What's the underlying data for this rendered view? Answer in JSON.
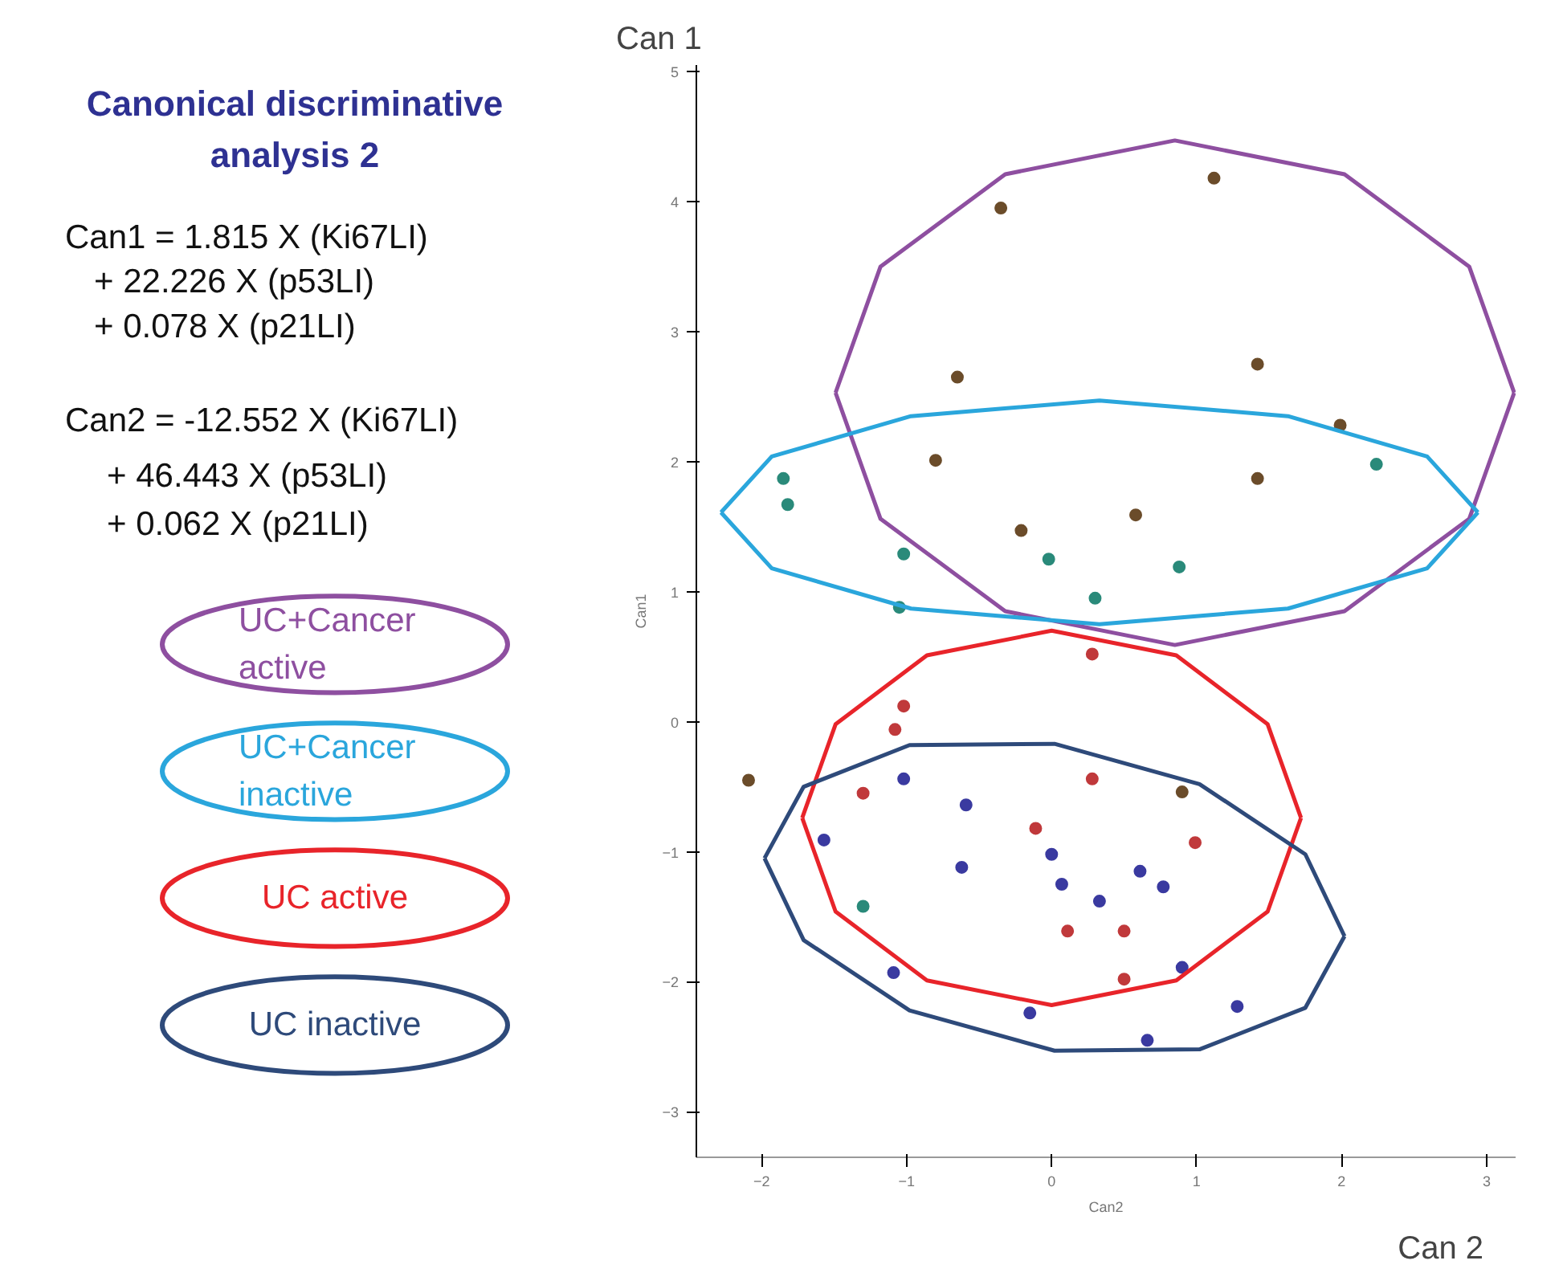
{
  "chart_data": {
    "type": "scatter",
    "title": "Canonical discriminative analysis 2",
    "annotations": [
      "Can1 = 1.815 X (Ki67LI)",
      "+ 22.226 X (p53LI)",
      "+ 0.078 X (p21LI)",
      "Can2 = -12.552 X (Ki67LI)",
      "+ 46.443 X (p53LI)",
      "+ 0.062 X (p21LI)",
      "Can 1",
      "Can 2"
    ],
    "xlabel": "Can2",
    "ylabel": "Can1",
    "xlim": [
      -2.45,
      3.2
    ],
    "ylim": [
      -3.35,
      5.05
    ],
    "xticks": [
      -2,
      -1,
      0,
      1,
      2,
      3
    ],
    "yticks": [
      -3,
      -2,
      -1,
      0,
      1,
      2,
      3,
      4,
      5
    ],
    "grid": false,
    "legend": "left",
    "marker": "circle",
    "series": [
      {
        "color": "#6b4c2a",
        "x": [
          1.12,
          -0.35,
          -0.65,
          1.42,
          1.99,
          -0.8,
          1.42,
          0.58,
          -0.21,
          -2.09,
          0.9
        ],
        "values": [
          4.18,
          3.95,
          2.65,
          2.75,
          2.28,
          2.01,
          1.87,
          1.59,
          1.47,
          -0.45,
          -0.54
        ]
      },
      {
        "color": "#2a8a7a",
        "x": [
          -1.85,
          -1.82,
          2.24,
          -1.02,
          -0.02,
          0.88,
          -1.05,
          0.3,
          -1.3
        ],
        "values": [
          1.87,
          1.67,
          1.98,
          1.29,
          1.25,
          1.19,
          0.88,
          0.95,
          -1.42
        ]
      },
      {
        "color": "#c0393b",
        "x": [
          0.28,
          -1.02,
          -1.08,
          0.28,
          -1.3,
          -0.11,
          0.99,
          0.11,
          0.5,
          0.5
        ],
        "values": [
          0.52,
          0.12,
          -0.06,
          -0.44,
          -0.55,
          -0.82,
          -0.93,
          -1.61,
          -1.61,
          -1.98
        ]
      },
      {
        "color": "#3a3aa0",
        "x": [
          -1.02,
          -0.59,
          -1.57,
          0.0,
          -0.62,
          0.61,
          0.07,
          0.77,
          0.33,
          -1.09,
          0.9,
          -0.15,
          1.28,
          0.66
        ],
        "values": [
          -0.44,
          -0.64,
          -0.91,
          -1.02,
          -1.12,
          -1.15,
          -1.25,
          -1.27,
          -1.38,
          -1.93,
          -1.89,
          -2.24,
          -2.19,
          -2.45
        ]
      },
      {
        "name": "UC+Cancer active",
        "type": "line",
        "marker": "none",
        "color": "#8e4fa0",
        "x": [
          -1.49,
          -1.18,
          -0.32,
          0.85,
          2.02,
          2.88,
          3.19
        ],
        "values": [
          2.53,
          3.5,
          4.21,
          4.47,
          4.21,
          3.5,
          2.53
        ]
      },
      {
        "type": "line",
        "marker": "none",
        "color": "#8e4fa0",
        "x": [
          -1.49,
          -1.18,
          -0.32,
          0.85,
          2.02,
          2.88,
          3.19
        ],
        "values": [
          2.53,
          1.56,
          0.85,
          0.59,
          0.85,
          1.56,
          2.53
        ]
      },
      {
        "name": "UC+Cancer inactive",
        "type": "line",
        "marker": "none",
        "color": "#2aa6dc",
        "x": [
          -2.28,
          -1.93,
          -0.97,
          0.33,
          1.63,
          2.59,
          2.94
        ],
        "values": [
          1.61,
          2.04,
          2.35,
          2.47,
          2.35,
          2.04,
          1.61
        ]
      },
      {
        "type": "line",
        "marker": "none",
        "color": "#2aa6dc",
        "x": [
          -2.28,
          -1.93,
          -0.97,
          0.33,
          1.63,
          2.59,
          2.94
        ],
        "values": [
          1.61,
          1.18,
          0.87,
          0.75,
          0.87,
          1.18,
          1.61
        ]
      },
      {
        "name": "UC active",
        "type": "line",
        "marker": "none",
        "color": "#e8242a",
        "x": [
          -1.72,
          -1.49,
          -0.86,
          0.0,
          0.86,
          1.49,
          1.72
        ],
        "values": [
          -0.74,
          -0.02,
          0.51,
          0.7,
          0.51,
          -0.02,
          -0.74
        ]
      },
      {
        "type": "line",
        "marker": "none",
        "color": "#e8242a",
        "x": [
          -1.72,
          -1.49,
          -0.86,
          0.0,
          0.86,
          1.49,
          1.72
        ],
        "values": [
          -0.74,
          -1.46,
          -1.99,
          -2.18,
          -1.99,
          -1.46,
          -0.74
        ]
      },
      {
        "name": "UC inactive",
        "type": "line",
        "marker": "none",
        "color": "#2e4a7a",
        "x": [
          -1.98,
          -1.71,
          -0.98,
          0.02,
          1.02,
          1.75,
          2.02
        ],
        "values": [
          -1.05,
          -0.5,
          -0.18,
          -0.17,
          -0.48,
          -1.02,
          -1.65
        ]
      },
      {
        "type": "line",
        "marker": "none",
        "color": "#2e4a7a",
        "x": [
          -1.98,
          -1.71,
          -0.98,
          0.02,
          1.02,
          1.75,
          2.02
        ],
        "values": [
          -1.05,
          -1.68,
          -2.22,
          -2.53,
          -2.52,
          -2.2,
          -1.65
        ]
      }
    ]
  }
}
